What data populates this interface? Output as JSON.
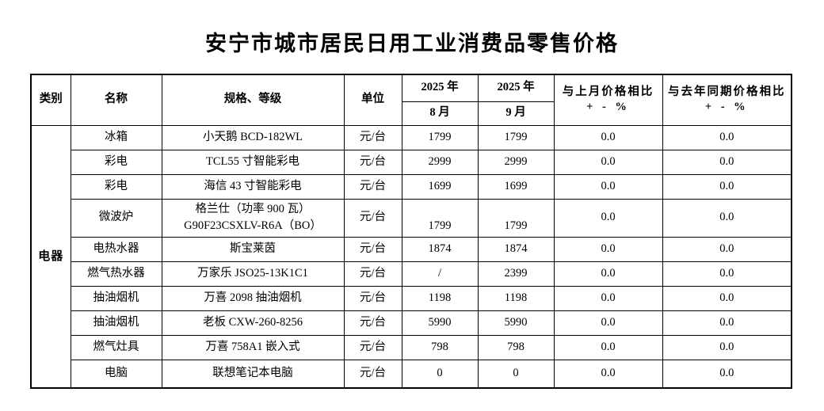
{
  "title": "安宁市城市居民日用工业消费品零售价格",
  "table": {
    "headers": {
      "category": "类别",
      "name": "名称",
      "spec": "规格、等级",
      "unit": "单位",
      "aug_year": "2025 年",
      "aug_month": "8 月",
      "sep_year": "2025 年",
      "sep_month": "9 月",
      "vs_prev_month_line1": "与上月价格相比",
      "vs_prev_month_line2": "+ - %",
      "vs_last_year_line1": "与去年同期价格相比",
      "vs_last_year_line2": "+ - %"
    },
    "category_value": "电器",
    "rows": [
      {
        "name": "冰箱",
        "spec": [
          "小天鹅 BCD-182WL"
        ],
        "unit": "元/台",
        "aug": "1799",
        "sep": "1799",
        "vs_prev_month": "0.0",
        "vs_last_year": "0.0"
      },
      {
        "name": "彩电",
        "spec": [
          "TCL55 寸智能彩电"
        ],
        "unit": "元/台",
        "aug": "2999",
        "sep": "2999",
        "vs_prev_month": "0.0",
        "vs_last_year": "0.0"
      },
      {
        "name": "彩电",
        "spec": [
          "海信 43 寸智能彩电"
        ],
        "unit": "元/台",
        "aug": "1699",
        "sep": "1699",
        "vs_prev_month": "0.0",
        "vs_last_year": "0.0"
      },
      {
        "name": "微波炉",
        "spec": [
          "格兰仕（功率 900 瓦）",
          "G90F23CSXLV-R6A（BO）"
        ],
        "unit": "元/台",
        "aug": "1799",
        "sep": "1799",
        "vs_prev_month": "0.0",
        "vs_last_year": "0.0"
      },
      {
        "name": "电热水器",
        "spec": [
          "斯宝莱茵"
        ],
        "unit": "元/台",
        "aug": "1874",
        "sep": "1874",
        "vs_prev_month": "0.0",
        "vs_last_year": "0.0"
      },
      {
        "name": "燃气热水器",
        "spec": [
          "万家乐 JSO25-13K1C1"
        ],
        "unit": "元/台",
        "aug": "/",
        "sep": "2399",
        "vs_prev_month": "0.0",
        "vs_last_year": "0.0"
      },
      {
        "name": "抽油烟机",
        "spec": [
          "万喜 2098 抽油烟机"
        ],
        "unit": "元/台",
        "aug": "1198",
        "sep": "1198",
        "vs_prev_month": "0.0",
        "vs_last_year": "0.0"
      },
      {
        "name": "抽油烟机",
        "spec": [
          "老板 CXW-260-8256"
        ],
        "unit": "元/台",
        "aug": "5990",
        "sep": "5990",
        "vs_prev_month": "0.0",
        "vs_last_year": "0.0"
      },
      {
        "name": "燃气灶具",
        "spec": [
          "万喜 758A1 嵌入式"
        ],
        "unit": "元/台",
        "aug": "798",
        "sep": "798",
        "vs_prev_month": "0.0",
        "vs_last_year": "0.0"
      },
      {
        "name": "电脑",
        "spec": [
          "联想笔记本电脑"
        ],
        "unit": "元/台",
        "aug": "0",
        "sep": "0",
        "vs_prev_month": "0.0",
        "vs_last_year": "0.0"
      }
    ]
  }
}
